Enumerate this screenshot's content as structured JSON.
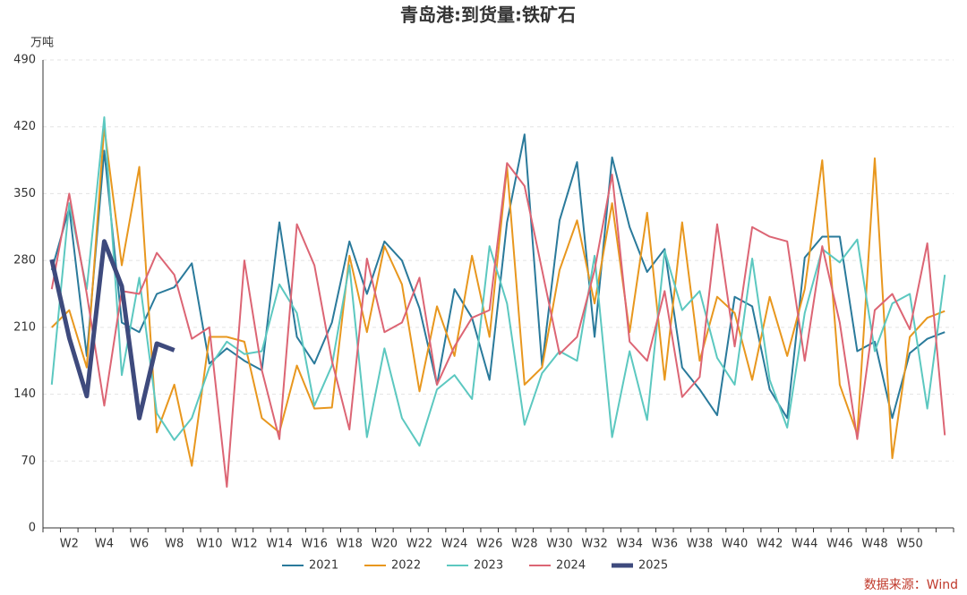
{
  "chart_data": {
    "type": "line",
    "title": "青岛港:到货量:铁矿石",
    "y_label": "万吨",
    "source": "数据来源：Wind",
    "categories": [
      null,
      "W2",
      null,
      "W4",
      null,
      "W6",
      null,
      "W8",
      null,
      "W10",
      null,
      "W12",
      null,
      "W14",
      null,
      "W16",
      null,
      "W18",
      null,
      "W20",
      null,
      "W22",
      null,
      "W24",
      null,
      "W26",
      null,
      "W28",
      null,
      "W30",
      null,
      "W32",
      null,
      "W34",
      null,
      "W36",
      null,
      "W38",
      null,
      "W40",
      null,
      "W42",
      null,
      "W44",
      null,
      "W46",
      null,
      "W48",
      null,
      "W50",
      null,
      null
    ],
    "ylim": [
      0,
      490
    ],
    "yticks": [
      0,
      70,
      140,
      210,
      280,
      350,
      420,
      490
    ],
    "grid": true,
    "series": [
      {
        "name": "2021",
        "color": "#2a7a9b",
        "width": 2,
        "values": [
          270,
          335,
          180,
          395,
          215,
          205,
          245,
          252,
          277,
          172,
          188,
          175,
          165,
          320,
          200,
          172,
          215,
          300,
          245,
          300,
          280,
          230,
          150,
          250,
          220,
          155,
          320,
          412,
          170,
          322,
          383,
          200,
          388,
          315,
          268,
          292,
          168,
          145,
          118,
          242,
          232,
          145,
          115,
          283,
          305,
          305,
          185,
          195,
          115,
          183,
          198,
          205
        ]
      },
      {
        "name": "2022",
        "color": "#e8971e",
        "width": 2,
        "values": [
          210,
          228,
          168,
          420,
          275,
          378,
          100,
          150,
          65,
          200,
          200,
          195,
          115,
          100,
          170,
          125,
          126,
          285,
          205,
          295,
          255,
          143,
          232,
          180,
          285,
          200,
          378,
          150,
          168,
          270,
          322,
          235,
          340,
          205,
          330,
          155,
          320,
          175,
          242,
          225,
          155,
          242,
          180,
          250,
          385,
          150,
          98,
          387,
          73,
          200,
          220,
          227
        ]
      },
      {
        "name": "2023",
        "color": "#5cc8c0",
        "width": 2,
        "values": [
          150,
          340,
          250,
          430,
          160,
          262,
          120,
          92,
          115,
          168,
          195,
          182,
          185,
          255,
          225,
          128,
          170,
          275,
          95,
          188,
          115,
          86,
          145,
          160,
          135,
          295,
          235,
          108,
          162,
          185,
          175,
          285,
          95,
          185,
          113,
          290,
          228,
          248,
          178,
          150,
          282,
          155,
          105,
          225,
          292,
          278,
          302,
          185,
          235,
          245,
          125,
          265
        ]
      },
      {
        "name": "2024",
        "color": "#dc6574",
        "width": 2,
        "values": [
          250,
          350,
          245,
          128,
          248,
          245,
          288,
          265,
          198,
          210,
          43,
          280,
          165,
          93,
          318,
          275,
          175,
          103,
          282,
          205,
          215,
          262,
          150,
          190,
          220,
          228,
          382,
          358,
          270,
          182,
          200,
          270,
          370,
          195,
          175,
          248,
          137,
          158,
          318,
          190,
          315,
          305,
          300,
          175,
          295,
          215,
          93,
          228,
          245,
          208,
          298,
          97
        ]
      },
      {
        "name": "2025",
        "color": "#3e4a7d",
        "width": 5,
        "values": [
          281,
          199,
          138,
          300,
          253,
          115,
          193,
          186,
          null,
          null,
          null,
          null,
          null,
          null,
          null,
          null,
          null,
          null,
          null,
          null,
          null,
          null,
          null,
          null,
          null,
          null,
          null,
          null,
          null,
          null,
          null,
          null,
          null,
          null,
          null,
          null,
          null,
          null,
          null,
          null,
          null,
          null,
          null,
          null,
          null,
          null,
          null,
          null,
          null,
          null,
          null,
          null
        ]
      }
    ]
  }
}
